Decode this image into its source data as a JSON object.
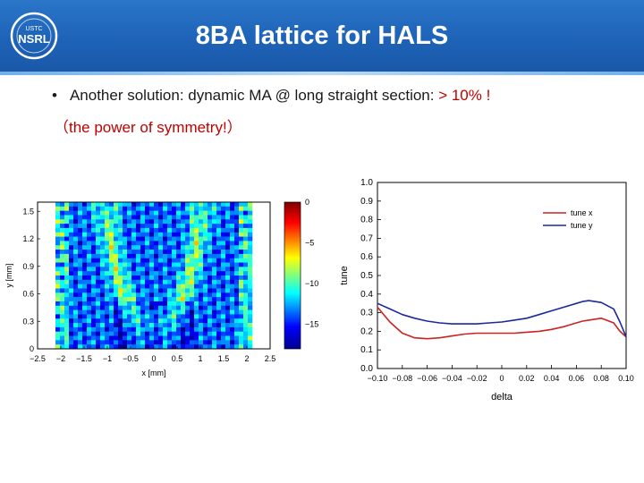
{
  "slide": {
    "title": "8BA lattice for HALS",
    "logo_text_top": "USTC",
    "logo_text_main": "NSRL",
    "bullet": {
      "marker": "•",
      "text": "Another solution: dynamic MA @ long straight section: ",
      "highlight": "> 10% !"
    },
    "sub_line": "（the power of symmetry!）"
  },
  "colors": {
    "header": "#1e63b8",
    "accent": "#c00000",
    "tune_x": "#cc2222",
    "tune_y": "#1a2a9a"
  },
  "chart_data": [
    {
      "type": "heatmap",
      "xlabel": "x [mm]",
      "ylabel": "y [mm]",
      "xlim": [
        -2.5,
        2.5
      ],
      "ylim": [
        0,
        1.6
      ],
      "xticks": [
        "−2.5",
        "−2",
        "−1.5",
        "−1",
        "−0.5",
        "0",
        "0.5",
        "1",
        "1.5",
        "2",
        "2.5"
      ],
      "yticks": [
        "0",
        "0.3",
        "0.6",
        "0.9",
        "1.2",
        "1.5"
      ],
      "colorbar": {
        "range": [
          -18,
          0
        ],
        "ticks": [
          "0",
          "−5",
          "−10",
          "−15"
        ],
        "colormap": "jet"
      }
    },
    {
      "type": "line",
      "xlabel": "delta",
      "ylabel": "tune",
      "xlim": [
        -0.1,
        0.1
      ],
      "ylim": [
        0,
        1.0
      ],
      "xticks": [
        "−0.10",
        "−0.08",
        "−0.06",
        "−0.04",
        "−0.02",
        "0",
        "0.02",
        "0.04",
        "0.06",
        "0.08",
        "0.10"
      ],
      "yticks": [
        "0.0",
        "0.1",
        "0.2",
        "0.3",
        "0.4",
        "0.5",
        "0.6",
        "0.7",
        "0.8",
        "0.9",
        "1.0"
      ],
      "legend_position": "top-right",
      "grid": false,
      "x": [
        -0.1,
        -0.09,
        -0.08,
        -0.07,
        -0.06,
        -0.05,
        -0.04,
        -0.03,
        -0.02,
        -0.01,
        0,
        0.01,
        0.02,
        0.03,
        0.04,
        0.05,
        0.06,
        0.065,
        0.07,
        0.08,
        0.09,
        0.095,
        0.1
      ],
      "series": [
        {
          "name": "tune x",
          "color": "#cc2222",
          "values": [
            0.33,
            0.25,
            0.19,
            0.165,
            0.16,
            0.165,
            0.175,
            0.185,
            0.19,
            0.19,
            0.19,
            0.19,
            0.195,
            0.2,
            0.21,
            0.225,
            0.245,
            0.255,
            0.26,
            0.27,
            0.245,
            0.2,
            0.17
          ]
        },
        {
          "name": "tune y",
          "color": "#1a2a9a",
          "values": [
            0.35,
            0.32,
            0.29,
            0.27,
            0.255,
            0.245,
            0.24,
            0.24,
            0.24,
            0.245,
            0.25,
            0.26,
            0.27,
            0.29,
            0.31,
            0.33,
            0.35,
            0.36,
            0.365,
            0.355,
            0.32,
            0.25,
            0.17
          ]
        }
      ]
    }
  ]
}
